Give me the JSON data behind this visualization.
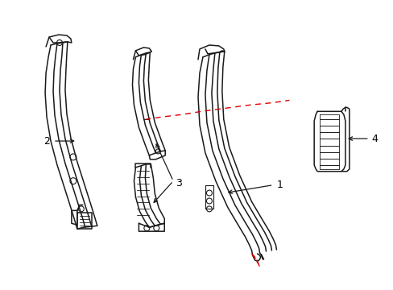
{
  "background_color": "#ffffff",
  "line_color": "#1a1a1a",
  "red_dash_color": "#dd0000",
  "label_color": "#000000",
  "fig_w": 4.89,
  "fig_h": 3.6,
  "dpi": 100
}
